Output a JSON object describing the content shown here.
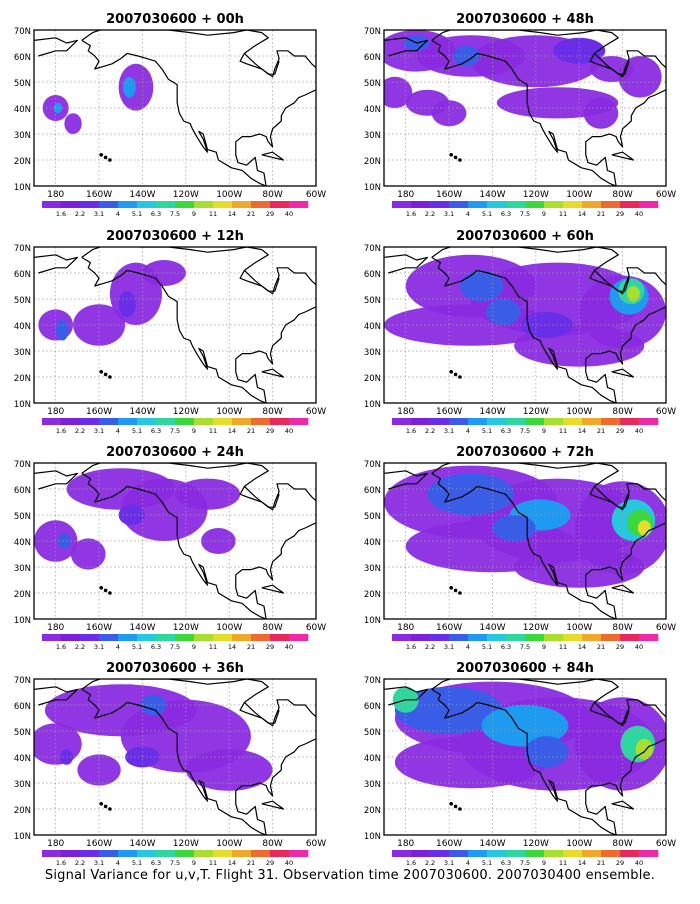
{
  "figure": {
    "footer": "Signal Variance for u,v,T. Flight 31. Observation time 2007030600. 2007030400 ensemble."
  },
  "axes": {
    "lat_ticks": [
      "70N",
      "60N",
      "50N",
      "40N",
      "30N",
      "20N",
      "10N"
    ],
    "lon_ticks": [
      "180",
      "160W",
      "140W",
      "120W",
      "100W",
      "80W",
      "60W"
    ]
  },
  "colorbar": {
    "labels": [
      "1.6",
      "2.2",
      "3.1",
      "4",
      "5.1",
      "6.3",
      "7.5",
      "9",
      "11",
      "14",
      "21",
      "29",
      "40"
    ],
    "colors": [
      "#8a2be2",
      "#7c1fd8",
      "#6a2ee8",
      "#3a5de8",
      "#1e9af0",
      "#26c8e0",
      "#2fd6a0",
      "#3ad83a",
      "#a8de2e",
      "#e6dc2a",
      "#f0a82a",
      "#ee6a2e",
      "#e8285a",
      "#ee2aa8"
    ]
  },
  "land_color": "#ffffff",
  "grid": "dotted",
  "panels": [
    {
      "title": "2007030600 + 00h"
    },
    {
      "title": "2007030600 + 48h"
    },
    {
      "title": "2007030600 + 12h"
    },
    {
      "title": "2007030600 + 60h"
    },
    {
      "title": "2007030600 + 24h"
    },
    {
      "title": "2007030600 + 72h"
    },
    {
      "title": "2007030600 + 36h"
    },
    {
      "title": "2007030600 + 84h"
    }
  ]
}
